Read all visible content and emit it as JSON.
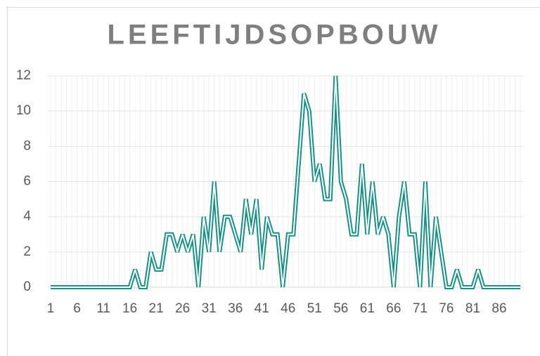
{
  "chart_data": {
    "type": "line",
    "title": "LEEFTIJDSOPBOUW",
    "x": [
      1,
      2,
      3,
      4,
      5,
      6,
      7,
      8,
      9,
      10,
      11,
      12,
      13,
      14,
      15,
      16,
      17,
      18,
      19,
      20,
      21,
      22,
      23,
      24,
      25,
      26,
      27,
      28,
      29,
      30,
      31,
      32,
      33,
      34,
      35,
      36,
      37,
      38,
      39,
      40,
      41,
      42,
      43,
      44,
      45,
      46,
      47,
      48,
      49,
      50,
      51,
      52,
      53,
      54,
      55,
      56,
      57,
      58,
      59,
      60,
      61,
      62,
      63,
      64,
      65,
      66,
      67,
      68,
      69,
      70,
      71,
      72,
      73,
      74,
      75,
      76,
      77,
      78,
      79,
      80,
      81,
      82,
      83,
      84,
      85,
      86,
      87,
      88,
      89,
      90
    ],
    "series": [
      {
        "color": "#1a8f86",
        "values": [
          0,
          0,
          0,
          0,
          0,
          0,
          0,
          0,
          0,
          0,
          0,
          0,
          0,
          0,
          0,
          0,
          1,
          0,
          0,
          2,
          1,
          1,
          3,
          3,
          2,
          3,
          2,
          3,
          0,
          4,
          2,
          6,
          2,
          4,
          4,
          3,
          2,
          5,
          3,
          5,
          1,
          4,
          3,
          3,
          0,
          3,
          3,
          7,
          11,
          10,
          6,
          7,
          5,
          5,
          12,
          6,
          5,
          3,
          3,
          7,
          3,
          6,
          3,
          4,
          3,
          0,
          4,
          6,
          3,
          3,
          0,
          6,
          0,
          4,
          2,
          0,
          0,
          1,
          0,
          0,
          0,
          1,
          0,
          0,
          0,
          0,
          0,
          0,
          0,
          0
        ]
      }
    ],
    "xlim": [
      1,
      90
    ],
    "xticks": [
      1,
      6,
      11,
      16,
      21,
      26,
      31,
      36,
      41,
      46,
      51,
      56,
      61,
      66,
      71,
      76,
      81,
      86
    ],
    "ylim": [
      0,
      12
    ],
    "yticks": [
      0,
      2,
      4,
      6,
      8,
      10,
      12
    ],
    "grid": true
  }
}
